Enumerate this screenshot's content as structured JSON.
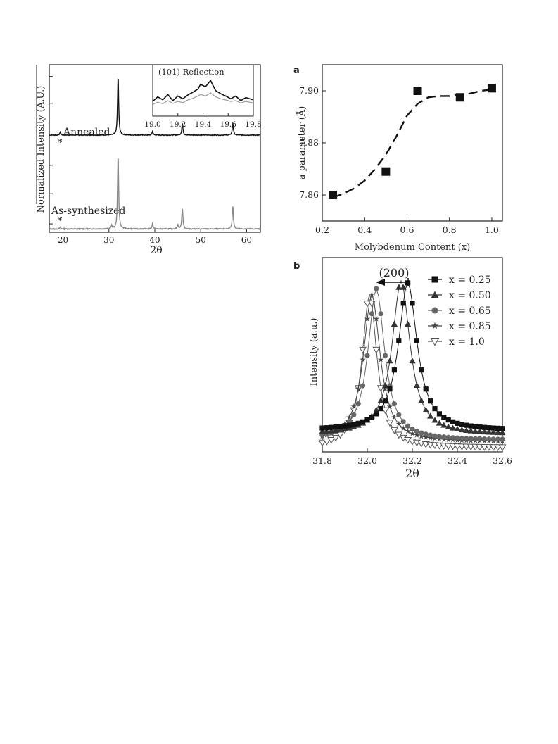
{
  "chart_data": [
    {
      "type": "line",
      "panel": "left",
      "ylabel": "Normalized Intensity (A.U.)",
      "xlabel": "2θ",
      "xlim": [
        17,
        63
      ],
      "x_ticks": [
        20,
        30,
        40,
        50,
        60
      ],
      "series": [
        {
          "name": "Annealed",
          "offset": 0.58,
          "scale": 0.36,
          "peaks": [
            [
              19.4,
              0.05
            ],
            [
              32.0,
              1.0
            ],
            [
              39.5,
              0.06
            ],
            [
              46.0,
              0.2
            ],
            [
              57.0,
              0.2
            ]
          ]
        },
        {
          "name": "As-synthesized",
          "offset": 0.02,
          "scale": 0.45,
          "peaks": [
            [
              19.4,
              0.02
            ],
            [
              30.6,
              0.04
            ],
            [
              32.0,
              1.0
            ],
            [
              39.5,
              0.07
            ],
            [
              45.0,
              0.06
            ],
            [
              46.0,
              0.28
            ],
            [
              57.0,
              0.3
            ]
          ]
        }
      ],
      "labels": [
        "Annealed",
        "As-synthesized"
      ],
      "markers": [
        "*",
        "*"
      ],
      "inset": {
        "title": "(101) Reflection",
        "xlim": [
          19.0,
          19.8
        ],
        "x_ticks": [
          "19.0",
          "19.2",
          "19.4",
          "19.6",
          "19.8"
        ],
        "series_dark": [
          [
            19.0,
            0.38
          ],
          [
            19.04,
            0.5
          ],
          [
            19.08,
            0.42
          ],
          [
            19.12,
            0.56
          ],
          [
            19.16,
            0.4
          ],
          [
            19.2,
            0.52
          ],
          [
            19.24,
            0.45
          ],
          [
            19.28,
            0.55
          ],
          [
            19.32,
            0.62
          ],
          [
            19.36,
            0.7
          ],
          [
            19.38,
            0.82
          ],
          [
            19.42,
            0.76
          ],
          [
            19.46,
            0.92
          ],
          [
            19.5,
            0.66
          ],
          [
            19.54,
            0.58
          ],
          [
            19.58,
            0.52
          ],
          [
            19.62,
            0.45
          ],
          [
            19.66,
            0.52
          ],
          [
            19.7,
            0.4
          ],
          [
            19.74,
            0.48
          ],
          [
            19.8,
            0.42
          ]
        ],
        "series_light": [
          [
            19.0,
            0.3
          ],
          [
            19.04,
            0.36
          ],
          [
            19.08,
            0.32
          ],
          [
            19.12,
            0.4
          ],
          [
            19.16,
            0.33
          ],
          [
            19.2,
            0.38
          ],
          [
            19.24,
            0.35
          ],
          [
            19.28,
            0.42
          ],
          [
            19.32,
            0.46
          ],
          [
            19.36,
            0.52
          ],
          [
            19.38,
            0.56
          ],
          [
            19.42,
            0.52
          ],
          [
            19.46,
            0.6
          ],
          [
            19.5,
            0.5
          ],
          [
            19.54,
            0.45
          ],
          [
            19.58,
            0.42
          ],
          [
            19.62,
            0.38
          ],
          [
            19.66,
            0.4
          ],
          [
            19.7,
            0.34
          ],
          [
            19.74,
            0.38
          ],
          [
            19.8,
            0.34
          ]
        ]
      }
    },
    {
      "type": "scatter",
      "panel": "a",
      "panel_label": "a",
      "xlabel": "Molybdenum Content (x)",
      "ylabel": "a parameter (Å)",
      "xlim": [
        0.2,
        1.05
      ],
      "ylim": [
        7.85,
        7.91
      ],
      "x_ticks": [
        "0.2",
        "0.4",
        "0.6",
        "0.8",
        "1.0"
      ],
      "y_ticks": [
        "7.86",
        "7.88",
        "7.90"
      ],
      "points": [
        [
          0.25,
          7.86
        ],
        [
          0.5,
          7.869
        ],
        [
          0.65,
          7.9
        ],
        [
          0.85,
          7.8975
        ],
        [
          1.0,
          7.901
        ]
      ],
      "fit_curve": [
        [
          0.25,
          7.859
        ],
        [
          0.3,
          7.8605
        ],
        [
          0.35,
          7.8625
        ],
        [
          0.4,
          7.8655
        ],
        [
          0.45,
          7.87
        ],
        [
          0.5,
          7.8755
        ],
        [
          0.55,
          7.8825
        ],
        [
          0.6,
          7.8905
        ],
        [
          0.65,
          7.895
        ],
        [
          0.7,
          7.8975
        ],
        [
          0.75,
          7.898
        ],
        [
          0.8,
          7.898
        ],
        [
          0.85,
          7.8985
        ],
        [
          0.9,
          7.899
        ],
        [
          0.95,
          7.9
        ],
        [
          1.0,
          7.9005
        ]
      ]
    },
    {
      "type": "line",
      "panel": "b",
      "panel_label": "b",
      "xlabel": "2θ",
      "ylabel": "Intensity (a.u.)",
      "xlim": [
        31.8,
        32.6
      ],
      "x_ticks": [
        "31.8",
        "32.0",
        "32.2",
        "32.4",
        "32.6"
      ],
      "annotation": "(200)",
      "series": [
        {
          "name": "x = 0.25",
          "marker": "square",
          "color": "#111111",
          "center": 32.18,
          "width": 0.05,
          "amp": 0.76,
          "base": 0.11
        },
        {
          "name": "x = 0.50",
          "marker": "triangle",
          "color": "#333333",
          "center": 32.15,
          "width": 0.048,
          "amp": 0.79,
          "base": 0.09
        },
        {
          "name": "x = 0.65",
          "marker": "circle",
          "color": "#666666",
          "center": 32.04,
          "width": 0.045,
          "amp": 0.78,
          "base": 0.06
        },
        {
          "name": "x = 0.85",
          "marker": "star",
          "color": "#444444",
          "center": 32.02,
          "width": 0.045,
          "amp": 0.76,
          "base": 0.05
        },
        {
          "name": "x = 1.0",
          "marker": "triangle-down-open",
          "color": "#555555",
          "center": 32.01,
          "width": 0.04,
          "amp": 0.79,
          "base": 0.02
        }
      ]
    }
  ]
}
